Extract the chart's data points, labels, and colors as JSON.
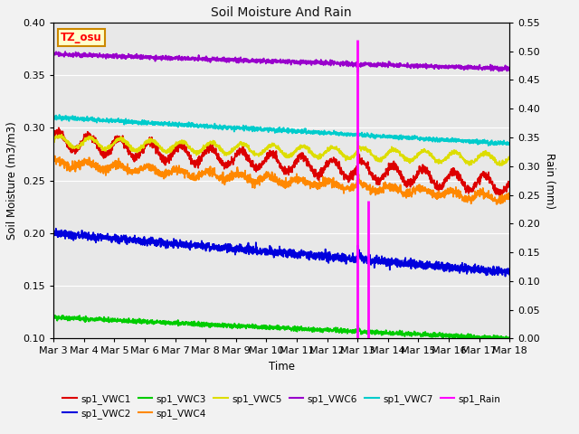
{
  "title": "Soil Moisture And Rain",
  "xlabel": "Time",
  "ylabel_left": "Soil Moisture (m3/m3)",
  "ylabel_right": "Rain (mm)",
  "ylim_left": [
    0.1,
    0.4
  ],
  "ylim_right": [
    0.0,
    0.55
  ],
  "xtick_labels": [
    "Mar 3",
    "Mar 4",
    "Mar 5",
    "Mar 6",
    "Mar 7",
    "Mar 8",
    "Mar 9",
    "Mar 10",
    "Mar 11",
    "Mar 12",
    "Mar 13",
    "Mar 14",
    "Mar 15",
    "Mar 16",
    "Mar 17",
    "Mar 18"
  ],
  "site_label": "TZ_osu",
  "fig_bg": "#f2f2f2",
  "plot_bg": "#e8e8e8",
  "title_color": "#111111",
  "grid_color": "#ffffff",
  "colors": {
    "VWC1": "#dd0000",
    "VWC2": "#0000dd",
    "VWC3": "#00cc00",
    "VWC4": "#ff8800",
    "VWC5": "#dddd00",
    "VWC6": "#9900cc",
    "VWC7": "#00cccc",
    "Rain": "#ff00ff"
  },
  "legend_labels": [
    "sp1_VWC1",
    "sp1_VWC2",
    "sp1_VWC3",
    "sp1_VWC4",
    "sp1_VWC5",
    "sp1_VWC6",
    "sp1_VWC7",
    "sp1_Rain"
  ]
}
